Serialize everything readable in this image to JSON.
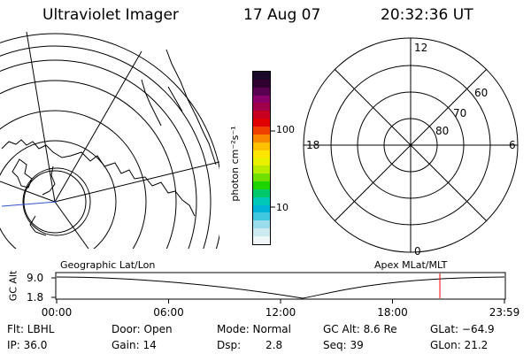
{
  "header": {
    "instrument": "Ultraviolet Imager",
    "date": "17 Aug 07",
    "time": "20:32:36 UT"
  },
  "colorbar": {
    "unit_label": "photon cm⁻²s⁻¹",
    "tick_100": "100",
    "tick_10": "10",
    "colors": [
      "#1a0a2a",
      "#300030",
      "#5a0050",
      "#8a006a",
      "#a0004a",
      "#c80020",
      "#e00000",
      "#f04000",
      "#f88800",
      "#ffc000",
      "#ffe600",
      "#eaf000",
      "#b8ec00",
      "#70e000",
      "#1ed400",
      "#00c86a",
      "#00c8b8",
      "#00b4d8",
      "#40c8e0",
      "#9adcec",
      "#cceaf0",
      "#eef6f8"
    ]
  },
  "geo_map": {
    "label": "Geographic Lat/Lon"
  },
  "polar_plot": {
    "label": "Apex MLat/MLT",
    "mlt_12": "12",
    "mlt_18": "18",
    "mlt_6": "6",
    "mlt_0": "0",
    "lat_60": "60",
    "lat_70": "70",
    "lat_80": "80"
  },
  "altitude_strip": {
    "axis_label": "GC Alt",
    "y_top": "9.0",
    "y_bottom": "1.8",
    "time_ticks": [
      "00:00",
      "06:00",
      "12:00",
      "18:00",
      "23:59"
    ],
    "current_marker_hours": 20.54,
    "accent_color": "#ff0000"
  },
  "status": {
    "filter": "Flt: LBHL",
    "ip": "IP: 36.0",
    "door": "Door: Open",
    "gain": "Gain: 14",
    "mode": "Mode: Normal",
    "dsp_label": "Dsp:",
    "dsp_value": "2.8",
    "gc_alt": "GC Alt: 8.6 Re",
    "seq": "Seq: 39",
    "glat": "GLat: −64.9",
    "glon": "GLon:  21.2"
  }
}
